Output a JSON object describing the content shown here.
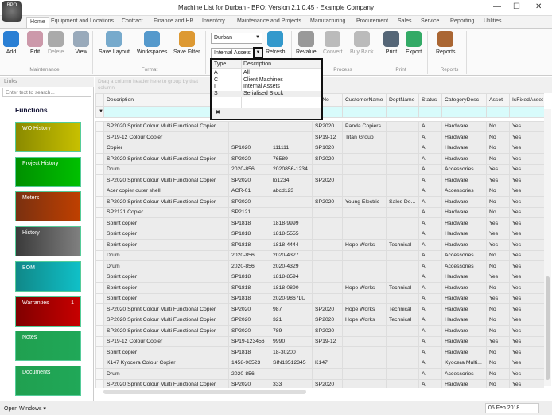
{
  "window": {
    "title": "Machine List for Durban - BPO: Version 2.1.0.45 - Example Company",
    "logo": "BPO",
    "min": "—",
    "max": "☐",
    "close": "✕"
  },
  "tabs": [
    "Home",
    "Equipment and Locations",
    "Contract",
    "Finance and HR",
    "Inventory",
    "Maintenance and Projects",
    "Manufacturing",
    "Procurement",
    "Sales",
    "Service",
    "Reporting",
    "Utilities"
  ],
  "ribbon": {
    "buttons": [
      {
        "label": "Add",
        "color": "#2a7fd4"
      },
      {
        "label": "Edit",
        "color": "#c9a"
      },
      {
        "label": "Delete",
        "color": "#aaa"
      },
      {
        "label": "View",
        "color": "#9ab"
      },
      {
        "label": "Save Layout",
        "color": "#7ac"
      },
      {
        "label": "Workspaces",
        "color": "#59c"
      },
      {
        "label": "Save Filter",
        "color": "#d93"
      },
      {
        "label": "Refresh",
        "color": "#39c"
      },
      {
        "label": "Revalue",
        "color": "#999"
      },
      {
        "label": "Convert",
        "color": "#bbb"
      },
      {
        "label": "Buy Back",
        "color": "#bbb"
      },
      {
        "label": "Print",
        "color": "#567"
      },
      {
        "label": "Export",
        "color": "#3a6"
      },
      {
        "label": "Reports",
        "color": "#a63"
      }
    ],
    "groups": [
      "Maintenance",
      "Format",
      "Process",
      "Print",
      "Reports"
    ],
    "branch": "Durban",
    "type_filter": "Internal Assets"
  },
  "popup": {
    "headers": [
      "Type",
      "Description"
    ],
    "rows": [
      [
        "A",
        "All"
      ],
      [
        "C",
        "Client Machines"
      ],
      [
        "I",
        "Internal Assets"
      ],
      [
        "S",
        "Serialised Stock"
      ]
    ],
    "clear": "✖"
  },
  "left": {
    "title": "Links",
    "search_placeholder": "Enter text to search...",
    "heading": "Functions",
    "tiles": [
      {
        "label": "WO History",
        "from": "#8a8a00",
        "to": "#c8c000"
      },
      {
        "label": "Project History",
        "from": "#009000",
        "to": "#00c000"
      },
      {
        "label": "Meters",
        "from": "#7a3010",
        "to": "#c04000"
      },
      {
        "label": "History",
        "from": "#3a3a3a",
        "to": "#808080"
      },
      {
        "label": "BOM",
        "from": "#108888",
        "to": "#10c0c8"
      },
      {
        "label": "Warranties",
        "badge": "1",
        "from": "#800000",
        "to": "#c80000"
      },
      {
        "label": "Notes",
        "from": "#20a050",
        "to": "#20a858"
      },
      {
        "label": "Documents",
        "from": "#20a050",
        "to": "#20a858"
      }
    ]
  },
  "grid": {
    "group_hint": "Drag a column header here to group by that column",
    "columns": [
      "Description",
      "",
      "",
      "delNo",
      "CustomerName",
      "DeptName",
      "Status",
      "CategoryDesc",
      "Asset",
      "IsFixedAsset"
    ],
    "rows": [
      [
        "SP2020 Sprint Colour Multi Functional Copier",
        "",
        "",
        "SP2020",
        "Panda Copiers",
        "",
        "A",
        "Hardware",
        "No",
        "Yes"
      ],
      [
        "SP19-12 Colour Copier",
        "",
        "",
        "SP19-12",
        "Titan Group",
        "",
        "A",
        "Hardware",
        "No",
        "Yes"
      ],
      [
        "Copier",
        "SP1020",
        "111111",
        "SP1020",
        "",
        "",
        "A",
        "Hardware",
        "No",
        "Yes"
      ],
      [
        "SP2020 Sprint Colour Multi Functional Copier",
        "SP2020",
        "76589",
        "SP2020",
        "",
        "",
        "A",
        "Hardware",
        "No",
        "Yes"
      ],
      [
        "Drum",
        "2020-856",
        "2020856-1234",
        "",
        "",
        "",
        "A",
        "Accessories",
        "Yes",
        "Yes"
      ],
      [
        "SP2020 Sprint Colour Multi Functional Copier",
        "SP2020",
        "lo1234",
        "SP2020",
        "",
        "",
        "A",
        "Hardware",
        "Yes",
        "Yes"
      ],
      [
        "Acer copier outer shell",
        "ACR-01",
        "abcd123",
        "",
        "",
        "",
        "A",
        "Accessories",
        "No",
        "Yes"
      ],
      [
        "SP2020 Sprint Colour Multi Functional Copier",
        "SP2020",
        "",
        "SP2020",
        "Young Electric",
        "Sales De...",
        "A",
        "Hardware",
        "No",
        "Yes"
      ],
      [
        "SP2121 Copier",
        "SP2121",
        "",
        "",
        "",
        "",
        "A",
        "Hardware",
        "No",
        "Yes"
      ],
      [
        "Sprint copier",
        "SP1818",
        "1818-9999",
        "",
        "",
        "",
        "A",
        "Hardware",
        "Yes",
        "Yes"
      ],
      [
        "Sprint copier",
        "SP1818",
        "1818-5555",
        "",
        "",
        "",
        "A",
        "Hardware",
        "Yes",
        "Yes"
      ],
      [
        "Sprint copier",
        "SP1818",
        "1818-4444",
        "",
        "Hope Works",
        "Technical",
        "A",
        "Hardware",
        "Yes",
        "Yes"
      ],
      [
        "Drum",
        "2020-856",
        "2020-4327",
        "",
        "",
        "",
        "A",
        "Accessories",
        "No",
        "Yes"
      ],
      [
        "Drum",
        "2020-856",
        "2020-4329",
        "",
        "",
        "",
        "A",
        "Accessories",
        "No",
        "Yes"
      ],
      [
        "Sprint copier",
        "SP1818",
        "1818-8594",
        "",
        "",
        "",
        "A",
        "Hardware",
        "Yes",
        "Yes"
      ],
      [
        "Sprint copier",
        "SP1818",
        "1818-0890",
        "",
        "Hope Works",
        "Technical",
        "A",
        "Hardware",
        "No",
        "Yes"
      ],
      [
        "Sprint copier",
        "SP1818",
        "2020-9867LU",
        "",
        "",
        "",
        "A",
        "Hardware",
        "Yes",
        "Yes"
      ],
      [
        "SP2020 Sprint Colour Multi Functional Copier",
        "SP2020",
        "987",
        "SP2020",
        "Hope Works",
        "Technical",
        "A",
        "Hardware",
        "No",
        "Yes"
      ],
      [
        "SP2020 Sprint Colour Multi Functional Copier",
        "SP2020",
        "321",
        "SP2020",
        "Hope Works",
        "Technical",
        "A",
        "Hardware",
        "No",
        "Yes"
      ],
      [
        "SP2020 Sprint Colour Multi Functional Copier",
        "SP2020",
        "789",
        "SP2020",
        "",
        "",
        "A",
        "Hardware",
        "No",
        "Yes"
      ],
      [
        "SP19-12 Colour Copier",
        "SP19-123456",
        "9990",
        "SP19-12",
        "",
        "",
        "A",
        "Hardware",
        "Yes",
        "Yes"
      ],
      [
        "Sprint copier",
        "SP1818",
        "18-30200",
        "",
        "",
        "",
        "A",
        "Hardware",
        "No",
        "Yes"
      ],
      [
        "K147 Kyocera Colour Copier",
        "1458-96523",
        "SIN13512345",
        "K147",
        "",
        "",
        "A",
        "Kyocera Multi...",
        "No",
        "Yes"
      ],
      [
        "Drum",
        "2020-856",
        "",
        "",
        "",
        "",
        "A",
        "Accessories",
        "No",
        "Yes"
      ],
      [
        "SP2020 Sprint Colour Multi Functional Copier",
        "SP2020",
        "333",
        "SP2020",
        "",
        "",
        "A",
        "Hardware",
        "No",
        "Yes"
      ]
    ]
  },
  "status": {
    "open_windows": "Open Windows ▾",
    "date": "05 Feb 2018"
  }
}
